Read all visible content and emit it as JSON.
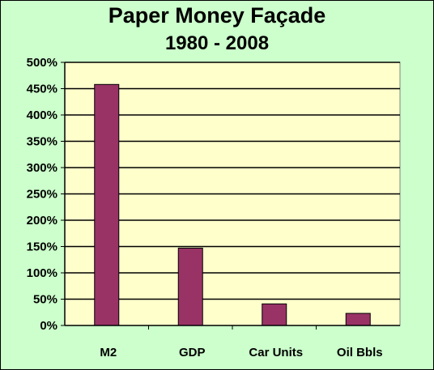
{
  "chart_data": {
    "type": "bar",
    "title": "Paper Money Façade",
    "subtitle": "1980 - 2008",
    "categories": [
      "M2",
      "GDP",
      "Car Units",
      "Oil Bbls"
    ],
    "values": [
      458,
      147,
      41,
      23
    ],
    "ylim": [
      0,
      500
    ],
    "yticks": [
      "0%",
      "50%",
      "100%",
      "150%",
      "200%",
      "250%",
      "300%",
      "350%",
      "400%",
      "450%",
      "500%"
    ],
    "grid": true,
    "legend": "none",
    "colors": {
      "bar": "#993366",
      "plot_bg": "#ffffcc",
      "frame_bg": "#ccffcc"
    }
  }
}
